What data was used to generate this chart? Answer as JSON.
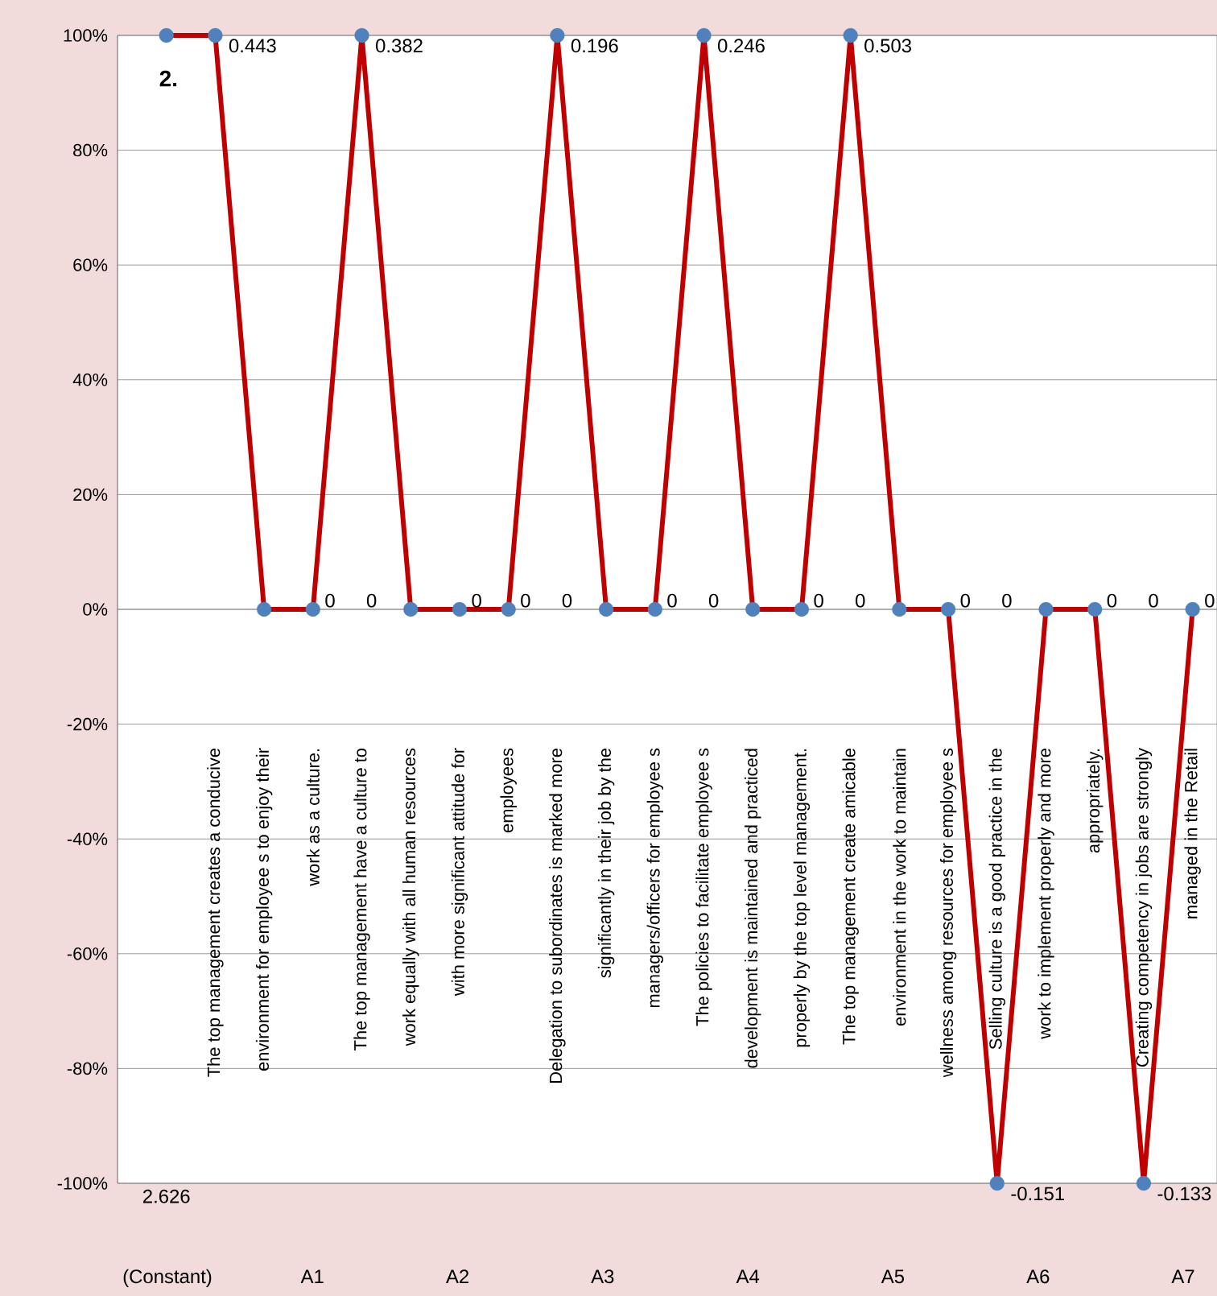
{
  "chart_data": {
    "type": "line",
    "categories": [
      null,
      "The top management creates a conducive",
      "environment for employee s to enjoy their",
      "work as a culture.",
      "The top management have a culture to",
      "work equally with all human resources",
      "with more significant attitude for",
      "employees",
      "Delegation to subordinates is marked more",
      "significantly in their job by the",
      "managers/officers for employee s",
      "The policies to facilitate employee s",
      "development is maintained and practiced",
      "properly by the top level management.",
      "The  top  management  create  amicable",
      "environment  in  the  work  to  maintain",
      "wellness among resources for employee s",
      "Selling culture is a good practice in the",
      "work to implement properly and more",
      "appropriately.",
      "Creating  competency in jobs are strongly",
      "managed in the Retail"
    ],
    "series": [
      {
        "color": "#c00000",
        "values": [
          100,
          100,
          0,
          0,
          100,
          0,
          0,
          0,
          100,
          0,
          0,
          100,
          0,
          0,
          100,
          0,
          0,
          -100,
          0,
          0,
          -100,
          0
        ]
      }
    ],
    "marker": "circle",
    "grid": "y",
    "ylim": [
      -100,
      100
    ],
    "yticks": [
      {
        "value": -100,
        "label": "-100%"
      },
      {
        "value": -80,
        "label": "-80%"
      },
      {
        "value": -60,
        "label": "-60%"
      },
      {
        "value": -40,
        "label": "-40%"
      },
      {
        "value": -20,
        "label": "-20%"
      },
      {
        "value": 0,
        "label": "0%"
      },
      {
        "value": 20,
        "label": "20%"
      },
      {
        "value": 40,
        "label": "40%"
      },
      {
        "value": 60,
        "label": "60%"
      },
      {
        "value": 80,
        "label": "80%"
      },
      {
        "value": 100,
        "label": "100%"
      }
    ],
    "annotations": [
      "2.",
      "2.626",
      "(Constant)",
      "A1",
      "A2",
      "A3",
      "A4",
      "A5",
      "A6",
      "A7",
      {
        "text": "0.443",
        "x": "The top management creates a conducive",
        "y": 100
      },
      {
        "text": "0.382",
        "x": "The top management have a culture to",
        "y": 100
      },
      {
        "text": "0.196",
        "x": "Delegation to subordinates is marked more",
        "y": 100
      },
      {
        "text": "0.246",
        "x": "The policies to facilitate employee s",
        "y": 100
      },
      {
        "text": "0.503",
        "x": "The  top  management  create  amicable",
        "y": 100
      },
      {
        "text": "-0.151",
        "x": "Selling culture is a good practice in the",
        "y": -100
      },
      {
        "text": "-0.133",
        "x": "Creating  competency in jobs are strongly",
        "y": -100
      },
      {
        "text": "0",
        "x": "work as a culture.",
        "y": 0
      },
      {
        "text": "0",
        "x": "work as a culture.",
        "y": 0
      },
      {
        "text": "0",
        "x": "with more significant attitude for",
        "y": 0
      },
      {
        "text": "0",
        "x": "employees",
        "y": 0
      },
      {
        "text": "0",
        "x": "employees",
        "y": 0
      },
      {
        "text": "0",
        "x": "managers/officers for employee s",
        "y": 0
      },
      {
        "text": "0",
        "x": "managers/officers for employee s",
        "y": 0
      },
      {
        "text": "0",
        "x": "properly by the top level management.",
        "y": 0
      },
      {
        "text": "0",
        "x": "properly by the top level management.",
        "y": 0
      },
      {
        "text": "0",
        "x": "wellness among resources for employee s",
        "y": 0
      },
      {
        "text": "0",
        "x": "wellness among resources for employee s",
        "y": 0
      },
      {
        "text": "0",
        "x": "appropriately.",
        "y": 0
      },
      {
        "text": "0",
        "x": "appropriately.",
        "y": 0
      },
      {
        "text": "0",
        "x": "managed in the Retail",
        "y": 0
      }
    ]
  }
}
